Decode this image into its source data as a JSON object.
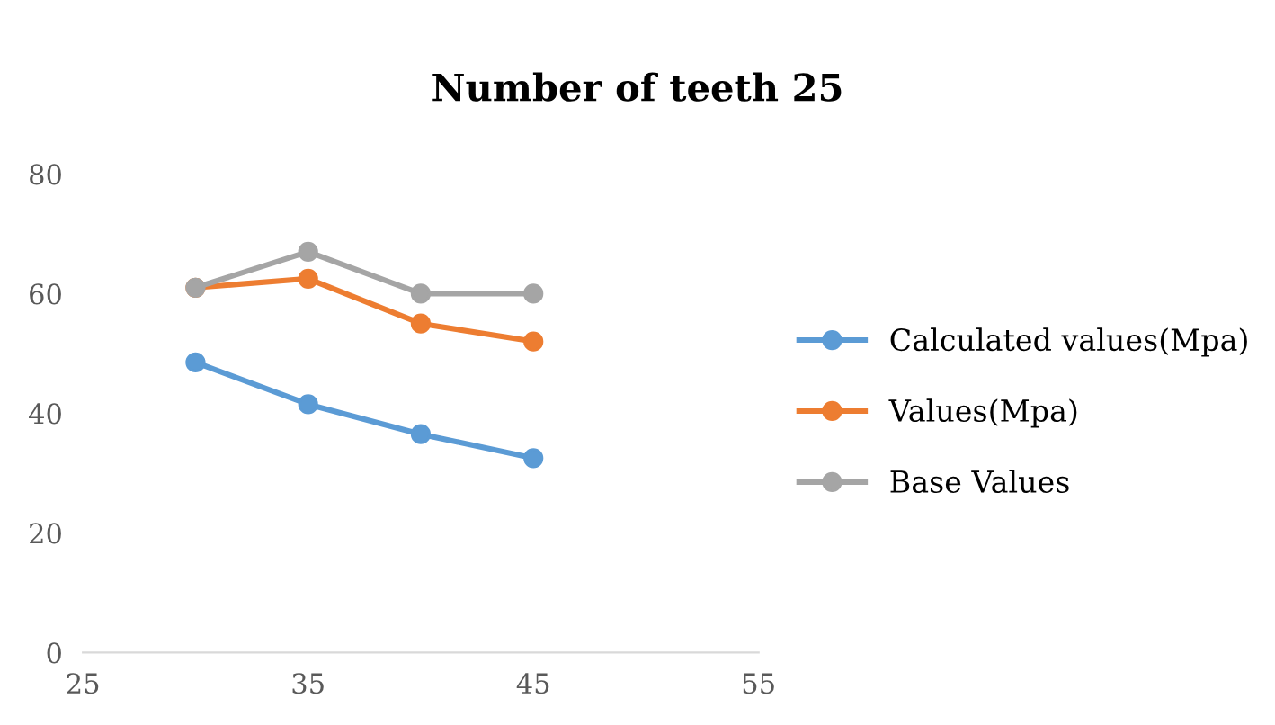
{
  "chart_data": {
    "type": "line",
    "title": "Number of teeth 25",
    "x": [
      30,
      35,
      40,
      45
    ],
    "series": [
      {
        "name": "Calculated values(Mpa)",
        "color": "#5b9bd5",
        "values": [
          48.5,
          41.5,
          36.5,
          32.5
        ]
      },
      {
        "name": "Values(Mpa)",
        "color": "#ed7d31",
        "values": [
          61,
          62.5,
          55,
          52
        ]
      },
      {
        "name": "Base Values",
        "color": "#a5a5a5",
        "values": [
          61,
          67,
          60,
          60
        ]
      }
    ],
    "xlim": [
      25,
      55
    ],
    "xticks": [
      25,
      35,
      45,
      55
    ],
    "ylim": [
      0,
      80
    ],
    "yticks": [
      0,
      20,
      40,
      60,
      80
    ],
    "grid": false,
    "legend": "right",
    "marker": "circle",
    "line_style": "solid"
  }
}
